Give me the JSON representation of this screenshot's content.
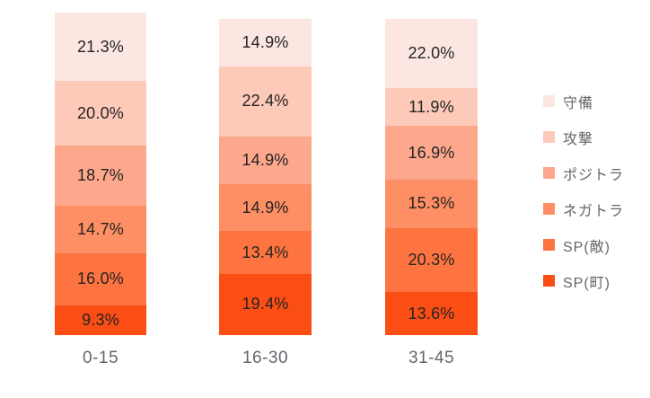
{
  "chart_data": {
    "type": "bar",
    "stacked": true,
    "orientation": "vertical",
    "title": "",
    "xlabel": "",
    "ylabel": "",
    "grid": false,
    "axes_visible": false,
    "legend_position": "right",
    "value_suffix": "%",
    "categories": [
      "0-15",
      "16-30",
      "31-45"
    ],
    "series": [
      {
        "name": "守備",
        "color": "#fbe6e2",
        "values": [
          21.3,
          14.9,
          22.0
        ]
      },
      {
        "name": "攻撃",
        "color": "#fdc9b8",
        "values": [
          20.0,
          22.4,
          11.9
        ]
      },
      {
        "name": "ポジトラ",
        "color": "#fda78d",
        "values": [
          18.7,
          14.9,
          16.9
        ]
      },
      {
        "name": "ネガトラ",
        "color": "#fe8e63",
        "values": [
          14.7,
          14.9,
          15.3
        ]
      },
      {
        "name": "SP(敵)",
        "color": "#fe7440",
        "values": [
          16.0,
          13.4,
          20.3
        ]
      },
      {
        "name": "SP(町)",
        "color": "#fb4e15",
        "values": [
          9.3,
          19.4,
          13.6
        ]
      }
    ],
    "data_labels": {
      "bar_0-15": [
        "21.3%",
        "20.0%",
        "18.7%",
        "14.7%",
        "16.0%",
        "9.3%"
      ],
      "bar_16-30": [
        "14.9%",
        "22.4%",
        "14.9%",
        "14.9%",
        "13.4%",
        "19.4%"
      ],
      "bar_31-45": [
        "22.0%",
        "11.9%",
        "16.9%",
        "15.3%",
        "20.3%",
        "13.6%"
      ]
    },
    "colors": {
      "data_label": "#252423",
      "axis_label": "#62676c",
      "legend_text": "#656565",
      "background": "#ffffff"
    }
  }
}
